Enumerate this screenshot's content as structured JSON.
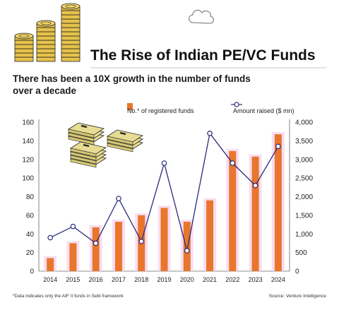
{
  "title": "The Rise of Indian PE/VC Funds",
  "subtitle": "There has been a 10X growth in the number of funds over a decade",
  "footnote": "*Data indicates only the AIF II funds in Sebi framework",
  "source": "Source: Venture Intelligence",
  "colors": {
    "bar": "#e8762c",
    "bar_glow": "#f6d3ee",
    "line": "#2b2a7a",
    "marker_fill": "#ffffff",
    "text": "#1a1a1a",
    "grid": "#e3e3e3",
    "gold": "#e6c24a",
    "money_green": "#e7dc93"
  },
  "icons": [
    "coin-stack-icon",
    "cloud-icon",
    "cash-bundles-icon"
  ],
  "chart_data": {
    "type": "bar",
    "categories": [
      "2014",
      "2015",
      "2016",
      "2017",
      "2018",
      "2019",
      "2020",
      "2021",
      "2022",
      "2023",
      "2024"
    ],
    "series": [
      {
        "name": "No.* of registered funds",
        "type": "bar",
        "axis": "left",
        "values": [
          14,
          30,
          47,
          53,
          60,
          68,
          53,
          76,
          129,
          123,
          147
        ]
      },
      {
        "name": "Amount raised ($ mn)",
        "type": "line",
        "axis": "right",
        "values": [
          900,
          1200,
          750,
          1950,
          800,
          2900,
          550,
          3700,
          2900,
          2300,
          3350
        ]
      }
    ],
    "y_left": {
      "lim": [
        0,
        160
      ],
      "ticks": [
        "0",
        "20",
        "40",
        "60",
        "80",
        "100",
        "120",
        "140",
        "160"
      ]
    },
    "y_right": {
      "lim": [
        0,
        4000
      ],
      "ticks": [
        "0",
        "500",
        "1,000",
        "1,500",
        "2,000",
        "2,500",
        "3,000",
        "3,500",
        "4,000"
      ]
    },
    "legend_position": "top",
    "grid": false
  }
}
